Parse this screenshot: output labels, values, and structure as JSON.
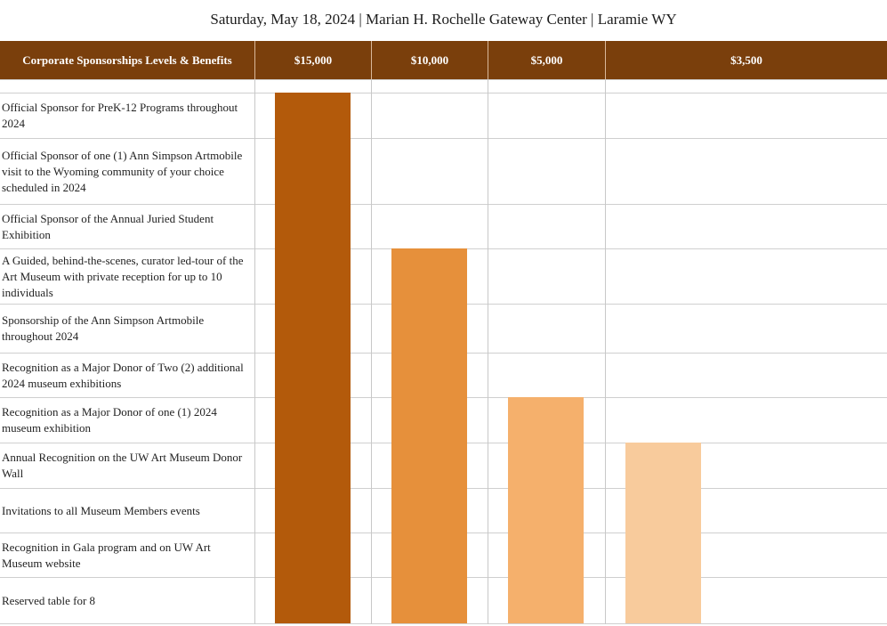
{
  "event": {
    "line": "Saturday, May 18, 2024 | Marian H. Rochelle Gateway Center | Laramie WY"
  },
  "table": {
    "header_title": "Corporate Sponsorships Levels & Benefits",
    "levels": [
      "$15,000",
      "$10,000",
      "$5,000",
      "$3,500"
    ],
    "level_colors": [
      "#b35a0b",
      "#e6903b",
      "#f5b06c",
      "#f8cb9c"
    ],
    "benefits": [
      "Official Sponsor for PreK-12 Programs throughout 2024",
      "Official Sponsor of one (1) Ann Simpson Artmobile visit to the Wyoming community of your choice scheduled in 2024",
      "Official Sponsor of the Annual Juried Student Exhibition",
      "A Guided, behind-the-scenes, curator led-tour of the Art Museum with private reception for up to 10 individuals",
      "Sponsorship of the Ann Simpson Artmobile throughout 2024",
      "Recognition as a Major Donor of Two (2) additional 2024 museum exhibitions",
      "Recognition as a Major Donor of one (1) 2024 museum exhibition",
      "Annual Recognition on the UW Art Museum Donor Wall",
      "Invitations to all Museum Members events",
      "Recognition in Gala program and on UW Art Museum website",
      "Reserved table for 8"
    ],
    "level_first_benefit_index": [
      0,
      3,
      6,
      7
    ]
  }
}
